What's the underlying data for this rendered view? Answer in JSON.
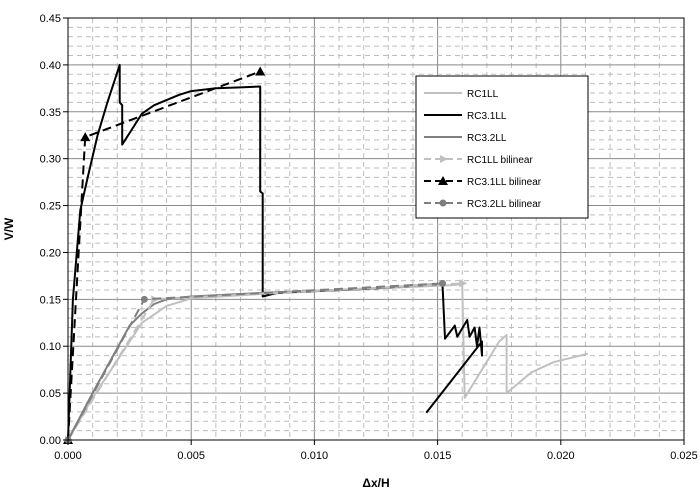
{
  "chart_data": {
    "type": "line",
    "xlabel": "Δx/H",
    "ylabel": "V/W",
    "xlim": [
      0,
      0.025
    ],
    "ylim": [
      0,
      0.45
    ],
    "x_ticks": [
      "0.000",
      "0.005",
      "0.010",
      "0.015",
      "0.020",
      "0.025"
    ],
    "y_ticks": [
      "0.00",
      "0.05",
      "0.10",
      "0.15",
      "0.20",
      "0.25",
      "0.30",
      "0.35",
      "0.40",
      "0.45"
    ],
    "grid": true,
    "minor_grid": true,
    "legend_position": "right",
    "series": [
      {
        "name": "RC1LL",
        "color": "#c0c0c0",
        "dash": "solid",
        "marker": "none",
        "points": [
          [
            0,
            0
          ],
          [
            0.001,
            0.045
          ],
          [
            0.002,
            0.085
          ],
          [
            0.003,
            0.125
          ],
          [
            0.004,
            0.143
          ],
          [
            0.005,
            0.151
          ],
          [
            0.008,
            0.156
          ],
          [
            0.012,
            0.161
          ],
          [
            0.0155,
            0.165
          ],
          [
            0.016,
            0.166
          ],
          [
            0.0161,
            0.045
          ],
          [
            0.0175,
            0.105
          ],
          [
            0.0178,
            0.112
          ],
          [
            0.0178,
            0.05
          ],
          [
            0.0188,
            0.072
          ],
          [
            0.0197,
            0.083
          ],
          [
            0.0211,
            0.092
          ]
        ]
      },
      {
        "name": "RC3.1LL",
        "color": "#000000",
        "dash": "solid",
        "marker": "none",
        "points": [
          [
            0,
            0
          ],
          [
            0.0002,
            0.15
          ],
          [
            0.0005,
            0.245
          ],
          [
            0.0008,
            0.28
          ],
          [
            0.0012,
            0.325
          ],
          [
            0.0016,
            0.36
          ],
          [
            0.0021,
            0.4
          ],
          [
            0.0021,
            0.36
          ],
          [
            0.0022,
            0.357
          ],
          [
            0.0022,
            0.315
          ],
          [
            0.003,
            0.348
          ],
          [
            0.0035,
            0.357
          ],
          [
            0.0045,
            0.368
          ],
          [
            0.005,
            0.372
          ],
          [
            0.006,
            0.375
          ],
          [
            0.007,
            0.376
          ],
          [
            0.0078,
            0.377
          ],
          [
            0.0078,
            0.265
          ],
          [
            0.0079,
            0.263
          ],
          [
            0.0079,
            0.153
          ],
          [
            0.0085,
            0.157
          ],
          [
            0.012,
            0.161
          ],
          [
            0.015,
            0.166
          ],
          [
            0.0152,
            0.166
          ],
          [
            0.0153,
            0.108
          ],
          [
            0.0157,
            0.122
          ],
          [
            0.0158,
            0.11
          ],
          [
            0.0162,
            0.128
          ],
          [
            0.0163,
            0.11
          ],
          [
            0.0165,
            0.12
          ],
          [
            0.0166,
            0.1
          ],
          [
            0.0167,
            0.12
          ],
          [
            0.0168,
            0.09
          ],
          [
            0.0168,
            0.105
          ],
          [
            0.01454,
            0.029
          ]
        ]
      },
      {
        "name": "RC3.2LL",
        "color": "#7f7f7f",
        "dash": "solid",
        "marker": "none",
        "points": [
          [
            0,
            0
          ],
          [
            0.001,
            0.05
          ],
          [
            0.002,
            0.098
          ],
          [
            0.0025,
            0.122
          ],
          [
            0.003,
            0.135
          ],
          [
            0.0035,
            0.145
          ],
          [
            0.004,
            0.15
          ],
          [
            0.005,
            0.153
          ],
          [
            0.008,
            0.157
          ],
          [
            0.012,
            0.161
          ],
          [
            0.015,
            0.166
          ],
          [
            0.0152,
            0.167
          ]
        ]
      },
      {
        "name": "RC1LL bilinear",
        "color": "#c0c0c0",
        "dash": "dashed",
        "marker": "arrow",
        "points": [
          [
            0,
            0
          ],
          [
            0.0035,
            0.15
          ],
          [
            0.016,
            0.167
          ]
        ]
      },
      {
        "name": "RC3.1LL bilinear",
        "color": "#000000",
        "dash": "dashed",
        "marker": "triangle",
        "points": [
          [
            0,
            0
          ],
          [
            0.0007,
            0.323
          ],
          [
            0.0078,
            0.393
          ]
        ]
      },
      {
        "name": "RC3.2LL bilinear",
        "color": "#7f7f7f",
        "dash": "dashed",
        "marker": "circle",
        "points": [
          [
            0,
            0
          ],
          [
            0.0031,
            0.15
          ],
          [
            0.0152,
            0.167
          ]
        ]
      }
    ]
  }
}
